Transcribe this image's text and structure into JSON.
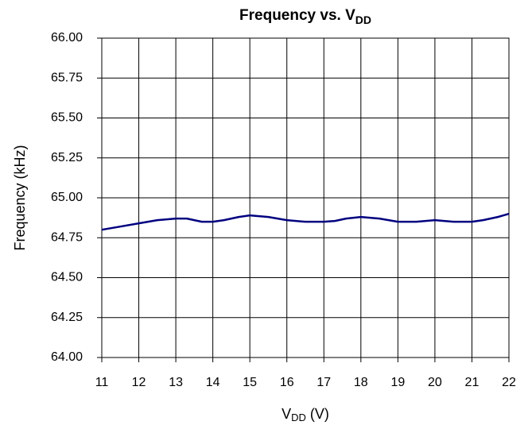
{
  "chart_data": {
    "type": "line",
    "title": [
      "Frequency  vs. V",
      "DD"
    ],
    "x_label": [
      "V",
      "DD",
      " (V)"
    ],
    "y_label": "Frequency  (kHz)",
    "x": [
      11,
      11.5,
      12,
      12.5,
      13,
      13.3,
      13.7,
      14,
      14.3,
      14.7,
      15,
      15.5,
      16,
      16.5,
      17,
      17.3,
      17.6,
      18,
      18.5,
      19,
      19.5,
      20,
      20.5,
      21,
      21.3,
      21.7,
      22
    ],
    "series": [
      {
        "color": "#000080",
        "values": [
          64.8,
          64.82,
          64.84,
          64.86,
          64.87,
          64.87,
          64.85,
          64.85,
          64.86,
          64.88,
          64.89,
          64.88,
          64.86,
          64.85,
          64.85,
          64.855,
          64.87,
          64.88,
          64.87,
          64.85,
          64.85,
          64.86,
          64.85,
          64.85,
          64.86,
          64.88,
          64.9
        ]
      }
    ],
    "xlim": [
      11,
      22
    ],
    "xticks": [
      11,
      12,
      13,
      14,
      15,
      16,
      17,
      18,
      19,
      20,
      21,
      22
    ],
    "ylim": [
      64,
      66
    ],
    "yticks": [
      {
        "value": 64,
        "label": "64.00"
      },
      {
        "value": 64.25,
        "label": "64.25"
      },
      {
        "value": 64.5,
        "label": "64.50"
      },
      {
        "value": 64.75,
        "label": "64.75"
      },
      {
        "value": 65,
        "label": "65.00"
      },
      {
        "value": 65.25,
        "label": "65.25"
      },
      {
        "value": 65.5,
        "label": "65.50"
      },
      {
        "value": 65.75,
        "label": "65.75"
      },
      {
        "value": 66,
        "label": "66.00"
      }
    ],
    "grid": true
  }
}
